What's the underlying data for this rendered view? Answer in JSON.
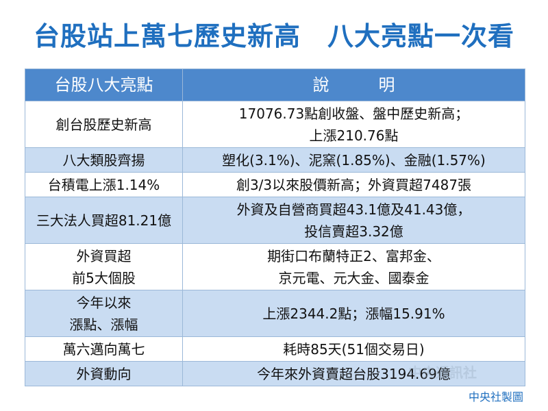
{
  "title": "台股站上萬七歷史新高　八大亮點一次看",
  "table": {
    "headers": [
      "台股八大亮點",
      "說　　　明"
    ],
    "rows": [
      {
        "label": [
          "創台股歷史新高"
        ],
        "desc": [
          "17076.73點創收盤、盤中歷史新高；",
          "上漲210.76點"
        ]
      },
      {
        "label": [
          "八大類股齊揚"
        ],
        "desc": [
          "塑化(3.1%)、泥窯(1.85%)、金融(1.57%)"
        ]
      },
      {
        "label": [
          "台積電上漲1.14%"
        ],
        "desc": [
          "創3/3以來股價新高；外資買超7487張"
        ]
      },
      {
        "label": [
          "三大法人買超81.21億"
        ],
        "desc": [
          "外資及自營商買超43.1億及41.43億，",
          "投信賣超3.32億"
        ]
      },
      {
        "label": [
          "外資買超",
          "前5大個股"
        ],
        "desc": [
          "期街口布蘭特正2、富邦金、",
          "京元電、元大金、國泰金"
        ]
      },
      {
        "label": [
          "今年以來",
          "漲點、漲幅"
        ],
        "desc": [
          "上漲2344.2點；漲幅15.91%"
        ]
      },
      {
        "label": [
          "萬六邁向萬七"
        ],
        "desc": [
          "耗時85天(51個交易日)"
        ]
      },
      {
        "label": [
          "外資動向"
        ],
        "desc": [
          "今年來外資賣超台股3194.69億"
        ]
      }
    ]
  },
  "watermark": "中央通訊社",
  "credit": "中央社製圖"
}
